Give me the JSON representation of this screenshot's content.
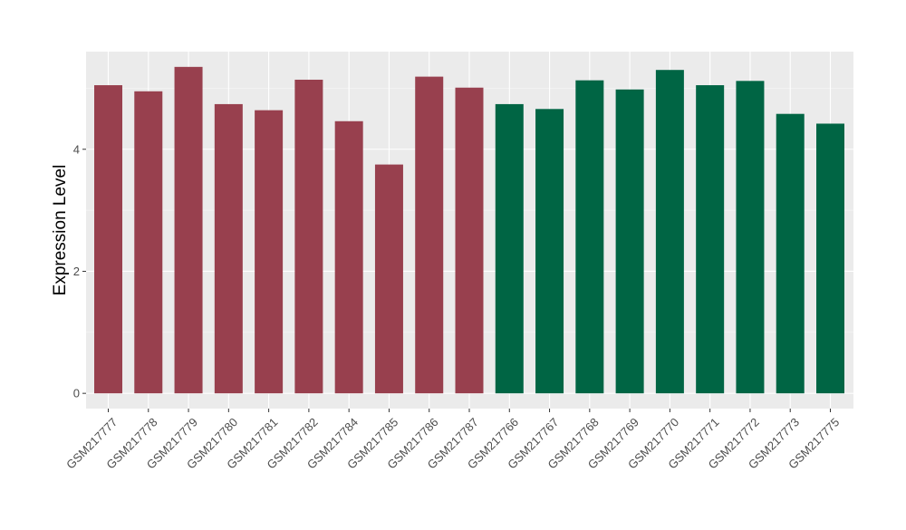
{
  "chart_data": {
    "type": "bar",
    "ylabel": "Expression Level",
    "xlabel": "",
    "ylim": [
      -0.25,
      5.6
    ],
    "yticks": [
      0,
      2,
      4
    ],
    "ytick_labels": [
      "0",
      "2",
      "4"
    ],
    "grid": true,
    "panel_background": "#ebebeb",
    "categories": [
      "GSM217777",
      "GSM217778",
      "GSM217779",
      "GSM217780",
      "GSM217781",
      "GSM217782",
      "GSM217784",
      "GSM217785",
      "GSM217786",
      "GSM217787",
      "GSM217766",
      "GSM217767",
      "GSM217768",
      "GSM217769",
      "GSM217770",
      "GSM217771",
      "GSM217772",
      "GSM217773",
      "GSM217775"
    ],
    "values": [
      5.05,
      4.95,
      5.35,
      4.74,
      4.64,
      5.14,
      4.46,
      3.75,
      5.19,
      5.01,
      4.74,
      4.66,
      5.13,
      4.98,
      5.3,
      5.05,
      5.12,
      4.58,
      4.42
    ],
    "bar_colors": [
      "#98404e",
      "#98404e",
      "#98404e",
      "#98404e",
      "#98404e",
      "#98404e",
      "#98404e",
      "#98404e",
      "#98404e",
      "#98404e",
      "#006544",
      "#006544",
      "#006544",
      "#006544",
      "#006544",
      "#006544",
      "#006544",
      "#006544",
      "#006544"
    ]
  }
}
